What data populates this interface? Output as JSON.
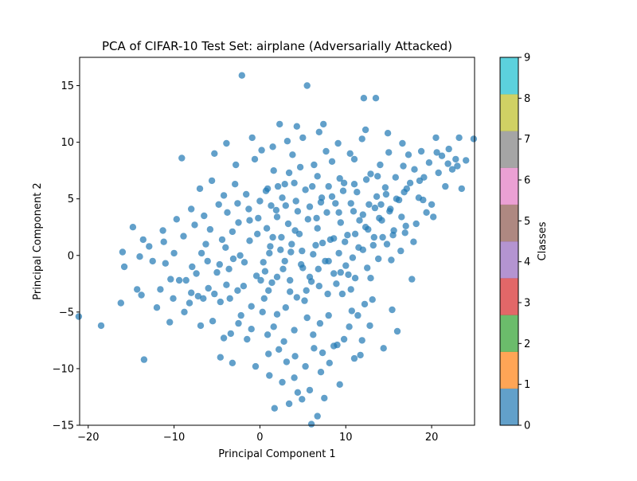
{
  "chart_data": {
    "type": "scatter",
    "title": "PCA of CIFAR-10 Test Set: airplane (Adversarially Attacked)",
    "xlabel": "Principal Component 1",
    "ylabel": "Principal Component 2",
    "xlim": [
      -21,
      25
    ],
    "ylim": [
      -15,
      17.5
    ],
    "xticks": [
      -20,
      -10,
      0,
      10,
      20
    ],
    "yticks": [
      -15,
      -10,
      -5,
      0,
      5,
      10,
      15
    ],
    "grid": false,
    "point_color": "#1f77b4",
    "point_alpha": 0.7,
    "colorbar": {
      "label": "Classes",
      "ticks": [
        0,
        1,
        2,
        3,
        4,
        5,
        6,
        7,
        8,
        9
      ],
      "range": [
        0,
        9
      ],
      "colors": [
        "#1f77b4",
        "#ff7f0e",
        "#2ca02c",
        "#d62728",
        "#9467bd",
        "#8c564b",
        "#e377c2",
        "#7f7f7f",
        "#bcbd22",
        "#17becf"
      ]
    },
    "points": [
      [
        -21.1,
        -5.4
      ],
      [
        -18.5,
        -6.2
      ],
      [
        -16.2,
        -4.2
      ],
      [
        -16.0,
        0.3
      ],
      [
        -15.8,
        -1.0
      ],
      [
        -14.8,
        2.5
      ],
      [
        -14.3,
        -3.0
      ],
      [
        -14.0,
        -0.1
      ],
      [
        -13.8,
        -3.5
      ],
      [
        -13.6,
        1.4
      ],
      [
        -13.5,
        -9.2
      ],
      [
        -12.5,
        -0.5
      ],
      [
        -12.0,
        -4.6
      ],
      [
        -11.6,
        -3.0
      ],
      [
        -11.3,
        2.2
      ],
      [
        -11.0,
        -0.7
      ],
      [
        -10.5,
        -5.9
      ],
      [
        -10.4,
        -2.1
      ],
      [
        -10.0,
        0.2
      ],
      [
        -9.4,
        -2.2
      ],
      [
        -9.1,
        8.6
      ],
      [
        -8.9,
        1.7
      ],
      [
        -8.6,
        -2.2
      ],
      [
        -8.2,
        -4.2
      ],
      [
        -7.9,
        -1.0
      ],
      [
        -7.6,
        2.7
      ],
      [
        -7.2,
        -3.6
      ],
      [
        -6.9,
        -6.2
      ],
      [
        -6.8,
        0.2
      ],
      [
        -6.5,
        3.5
      ],
      [
        -6.0,
        -2.9
      ],
      [
        -5.8,
        2.3
      ],
      [
        -5.5,
        -5.8
      ],
      [
        -5.3,
        9.0
      ],
      [
        -5.0,
        -1.5
      ],
      [
        -4.8,
        4.5
      ],
      [
        -4.6,
        -4.1
      ],
      [
        -4.2,
        -7.3
      ],
      [
        -4.0,
        0.7
      ],
      [
        -3.9,
        9.9
      ],
      [
        -3.6,
        -1.2
      ],
      [
        -3.5,
        -3.8
      ],
      [
        -3.2,
        2.1
      ],
      [
        -2.8,
        8.0
      ],
      [
        -2.5,
        -6.0
      ],
      [
        -2.3,
        0.0
      ],
      [
        -2.1,
        15.9
      ],
      [
        -1.9,
        -2.7
      ],
      [
        -1.6,
        5.4
      ],
      [
        -1.5,
        -7.4
      ],
      [
        -1.2,
        1.3
      ],
      [
        -1.0,
        -4.5
      ],
      [
        -0.6,
        8.5
      ],
      [
        -0.4,
        -1.8
      ],
      [
        -0.2,
        3.3
      ],
      [
        0.2,
        9.3
      ],
      [
        0.4,
        -0.6
      ],
      [
        0.5,
        -3.8
      ],
      [
        0.7,
        5.7
      ],
      [
        0.8,
        2.4
      ],
      [
        1.0,
        -8.7
      ],
      [
        1.2,
        0.8
      ],
      [
        1.4,
        -2.4
      ],
      [
        1.6,
        7.5
      ],
      [
        1.7,
        -13.5
      ],
      [
        1.9,
        4.0
      ],
      [
        2.0,
        -5.2
      ],
      [
        2.3,
        11.6
      ],
      [
        2.5,
        1.6
      ],
      [
        2.7,
        -1.2
      ],
      [
        2.9,
        6.3
      ],
      [
        3.1,
        -9.4
      ],
      [
        3.3,
        2.8
      ],
      [
        3.5,
        -3.2
      ],
      [
        3.6,
        0.3
      ],
      [
        3.8,
        8.9
      ],
      [
        4.0,
        -6.6
      ],
      [
        4.2,
        4.8
      ],
      [
        4.4,
        -12.1
      ],
      [
        4.6,
        1.9
      ],
      [
        4.8,
        -0.8
      ],
      [
        5.0,
        10.4
      ],
      [
        5.2,
        -4.0
      ],
      [
        5.5,
        15.0
      ],
      [
        5.6,
        3.2
      ],
      [
        5.8,
        -1.9
      ],
      [
        6.0,
        -14.9
      ],
      [
        6.1,
        6.1
      ],
      [
        6.3,
        -8.2
      ],
      [
        6.5,
        0.9
      ],
      [
        6.7,
        2.4
      ],
      [
        6.9,
        -2.7
      ],
      [
        7.1,
        -10.3
      ],
      [
        7.2,
        5.1
      ],
      [
        7.4,
        11.6
      ],
      [
        7.6,
        -0.5
      ],
      [
        7.8,
        3.8
      ],
      [
        8.0,
        -5.3
      ],
      [
        8.2,
        1.4
      ],
      [
        8.4,
        8.3
      ],
      [
        8.6,
        -1.6
      ],
      [
        8.8,
        4.6
      ],
      [
        9.0,
        -7.9
      ],
      [
        9.2,
        0.2
      ],
      [
        9.4,
        2.9
      ],
      [
        9.6,
        -3.4
      ],
      [
        9.8,
        6.4
      ],
      [
        10.0,
        -0.9
      ],
      [
        10.2,
        1.8
      ],
      [
        10.5,
        9.0
      ],
      [
        10.7,
        -4.9
      ],
      [
        10.9,
        3.9
      ],
      [
        11.1,
        -2.0
      ],
      [
        11.3,
        5.6
      ],
      [
        11.5,
        0.7
      ],
      [
        11.7,
        -8.8
      ],
      [
        11.9,
        10.3
      ],
      [
        12.1,
        13.9
      ],
      [
        12.3,
        2.5
      ],
      [
        12.5,
        -1.1
      ],
      [
        12.7,
        4.5
      ],
      [
        12.9,
        7.2
      ],
      [
        13.1,
        -3.9
      ],
      [
        13.3,
        1.6
      ],
      [
        13.5,
        13.9
      ],
      [
        13.6,
        5.2
      ],
      [
        13.8,
        -0.3
      ],
      [
        14.0,
        8.0
      ],
      [
        14.2,
        3.1
      ],
      [
        14.4,
        -8.2
      ],
      [
        14.6,
        6.0
      ],
      [
        14.8,
        1.0
      ],
      [
        15.0,
        9.1
      ],
      [
        15.2,
        4.1
      ],
      [
        15.4,
        -4.8
      ],
      [
        15.6,
        2.2
      ],
      [
        15.8,
        6.9
      ],
      [
        16.0,
        -6.7
      ],
      [
        16.2,
        4.9
      ],
      [
        16.4,
        0.4
      ],
      [
        16.6,
        9.9
      ],
      [
        16.8,
        5.6
      ],
      [
        17.0,
        2.6
      ],
      [
        17.3,
        8.9
      ],
      [
        17.5,
        6.4
      ],
      [
        17.7,
        -2.1
      ],
      [
        18.0,
        7.6
      ],
      [
        18.2,
        2.8
      ],
      [
        18.5,
        5.1
      ],
      [
        18.8,
        9.2
      ],
      [
        19.1,
        6.9
      ],
      [
        19.4,
        3.8
      ],
      [
        19.7,
        8.2
      ],
      [
        20.0,
        4.5
      ],
      [
        20.2,
        3.4
      ],
      [
        20.5,
        10.4
      ],
      [
        20.8,
        7.3
      ],
      [
        21.2,
        8.8
      ],
      [
        21.6,
        6.1
      ],
      [
        22.0,
        9.4
      ],
      [
        22.4,
        7.6
      ],
      [
        22.8,
        8.5
      ],
      [
        23.2,
        10.4
      ],
      [
        23.5,
        5.9
      ],
      [
        24.0,
        8.4
      ],
      [
        24.9,
        10.3
      ],
      [
        3.4,
        -13.1
      ],
      [
        4.9,
        -12.7
      ],
      [
        6.7,
        -14.2
      ],
      [
        9.3,
        -11.4
      ],
      [
        -4.6,
        -9.0
      ],
      [
        -3.2,
        -9.5
      ],
      [
        8.1,
        -9.5
      ],
      [
        9.8,
        -7.4
      ],
      [
        11.0,
        -9.1
      ],
      [
        12.8,
        -6.2
      ],
      [
        6.2,
        -7.0
      ],
      [
        0.9,
        -7.0
      ],
      [
        2.2,
        -8.3
      ],
      [
        5.5,
        -5.5
      ],
      [
        7.0,
        -6.0
      ],
      [
        4.3,
        -3.7
      ],
      [
        6.0,
        -2.3
      ],
      [
        8.9,
        -2.5
      ],
      [
        10.6,
        -3.0
      ],
      [
        11.4,
        -5.3
      ],
      [
        12.2,
        -4.3
      ],
      [
        3.0,
        -4.6
      ],
      [
        1.0,
        -3.1
      ],
      [
        0.1,
        -2.2
      ],
      [
        2.0,
        -1.9
      ],
      [
        3.5,
        -2.2
      ],
      [
        5.0,
        -1.1
      ],
      [
        6.8,
        -1.2
      ],
      [
        8.0,
        -0.5
      ],
      [
        9.4,
        -1.5
      ],
      [
        10.8,
        -0.2
      ],
      [
        12.0,
        0.5
      ],
      [
        13.2,
        0.9
      ],
      [
        14.3,
        1.6
      ],
      [
        15.5,
        1.8
      ],
      [
        16.9,
        2.0
      ],
      [
        1.1,
        0.2
      ],
      [
        2.4,
        0.5
      ],
      [
        3.7,
        1.0
      ],
      [
        4.9,
        0.4
      ],
      [
        6.2,
        0.1
      ],
      [
        7.3,
        1.1
      ],
      [
        8.6,
        1.5
      ],
      [
        9.9,
        1.2
      ],
      [
        11.1,
        1.9
      ],
      [
        12.6,
        2.3
      ],
      [
        13.9,
        3.3
      ],
      [
        15.1,
        3.9
      ],
      [
        16.5,
        3.4
      ],
      [
        2.0,
        3.4
      ],
      [
        3.0,
        4.4
      ],
      [
        4.4,
        3.9
      ],
      [
        5.8,
        4.3
      ],
      [
        7.1,
        4.7
      ],
      [
        8.4,
        5.2
      ],
      [
        9.7,
        5.7
      ],
      [
        11.0,
        6.3
      ],
      [
        12.4,
        6.7
      ],
      [
        13.7,
        7.0
      ],
      [
        0.9,
        5.9
      ],
      [
        2.1,
        6.1
      ],
      [
        3.4,
        7.3
      ],
      [
        4.7,
        7.8
      ],
      [
        6.3,
        8.0
      ],
      [
        7.7,
        9.2
      ],
      [
        9.1,
        9.9
      ],
      [
        11.0,
        8.5
      ],
      [
        -1.2,
        3.1
      ],
      [
        -2.5,
        2.9
      ],
      [
        -3.8,
        3.8
      ],
      [
        -2.9,
        6.3
      ],
      [
        -4.2,
        5.3
      ],
      [
        -1.8,
        -0.6
      ],
      [
        -3.1,
        -0.3
      ],
      [
        -4.7,
        -0.8
      ],
      [
        -6.1,
        -0.5
      ],
      [
        -7.4,
        -1.6
      ],
      [
        -2.6,
        -3.1
      ],
      [
        -3.9,
        -2.6
      ],
      [
        -5.3,
        -3.4
      ],
      [
        -6.6,
        -3.8
      ],
      [
        -8.0,
        -3.3
      ],
      [
        -2.2,
        -5.3
      ],
      [
        -1.0,
        -6.5
      ],
      [
        -3.4,
        -6.9
      ],
      [
        0.3,
        -5.0
      ],
      [
        1.6,
        -6.3
      ],
      [
        2.8,
        -7.6
      ],
      [
        4.1,
        -8.9
      ],
      [
        5.3,
        -9.8
      ],
      [
        7.3,
        -8.6
      ],
      [
        8.6,
        -8.0
      ],
      [
        10.4,
        -6.3
      ],
      [
        11.9,
        -7.5
      ],
      [
        -0.5,
        -9.8
      ],
      [
        1.1,
        -10.6
      ],
      [
        2.6,
        -11.2
      ],
      [
        4.0,
        -10.8
      ],
      [
        5.8,
        -11.9
      ],
      [
        7.5,
        -12.6
      ],
      [
        3.2,
        10.1
      ],
      [
        1.5,
        9.6
      ],
      [
        -0.9,
        10.4
      ],
      [
        4.3,
        11.4
      ],
      [
        6.9,
        10.9
      ],
      [
        12.3,
        11.1
      ],
      [
        14.9,
        10.8
      ],
      [
        -8.0,
        4.1
      ],
      [
        -9.7,
        3.2
      ],
      [
        -11.2,
        1.2
      ],
      [
        -12.9,
        0.8
      ],
      [
        -10.1,
        -3.8
      ],
      [
        -8.8,
        -5.0
      ],
      [
        -7.0,
        5.9
      ],
      [
        -5.6,
        6.6
      ],
      [
        -6.3,
        1.0
      ],
      [
        -4.4,
        1.4
      ],
      [
        -0.3,
        1.9
      ],
      [
        0.6,
        -1.4
      ],
      [
        1.5,
        1.6
      ],
      [
        2.9,
        -0.5
      ],
      [
        4.1,
        2.2
      ],
      [
        5.4,
        -3.1
      ],
      [
        6.6,
        3.3
      ],
      [
        7.9,
        -3.4
      ],
      [
        9.2,
        3.8
      ],
      [
        10.3,
        -1.7
      ],
      [
        11.6,
        3.1
      ],
      [
        12.9,
        -2.0
      ],
      [
        14.1,
        4.5
      ],
      [
        15.3,
        -0.4
      ],
      [
        16.7,
        7.9
      ],
      [
        17.9,
        1.2
      ],
      [
        19.0,
        4.9
      ],
      [
        20.6,
        9.1
      ],
      [
        21.9,
        8.1
      ],
      [
        23.0,
        7.9
      ],
      [
        18.6,
        6.6
      ],
      [
        17.1,
        5.9
      ],
      [
        15.9,
        5.0
      ],
      [
        14.7,
        5.4
      ],
      [
        13.4,
        4.2
      ],
      [
        12.0,
        3.6
      ],
      [
        10.6,
        4.6
      ],
      [
        9.3,
        6.8
      ],
      [
        8.0,
        6.1
      ],
      [
        6.7,
        7.0
      ],
      [
        5.3,
        5.8
      ],
      [
        4.0,
        6.4
      ],
      [
        2.6,
        5.1
      ],
      [
        1.3,
        4.4
      ],
      [
        0.0,
        4.8
      ],
      [
        -1.3,
        4.1
      ],
      [
        -2.6,
        4.6
      ]
    ]
  }
}
